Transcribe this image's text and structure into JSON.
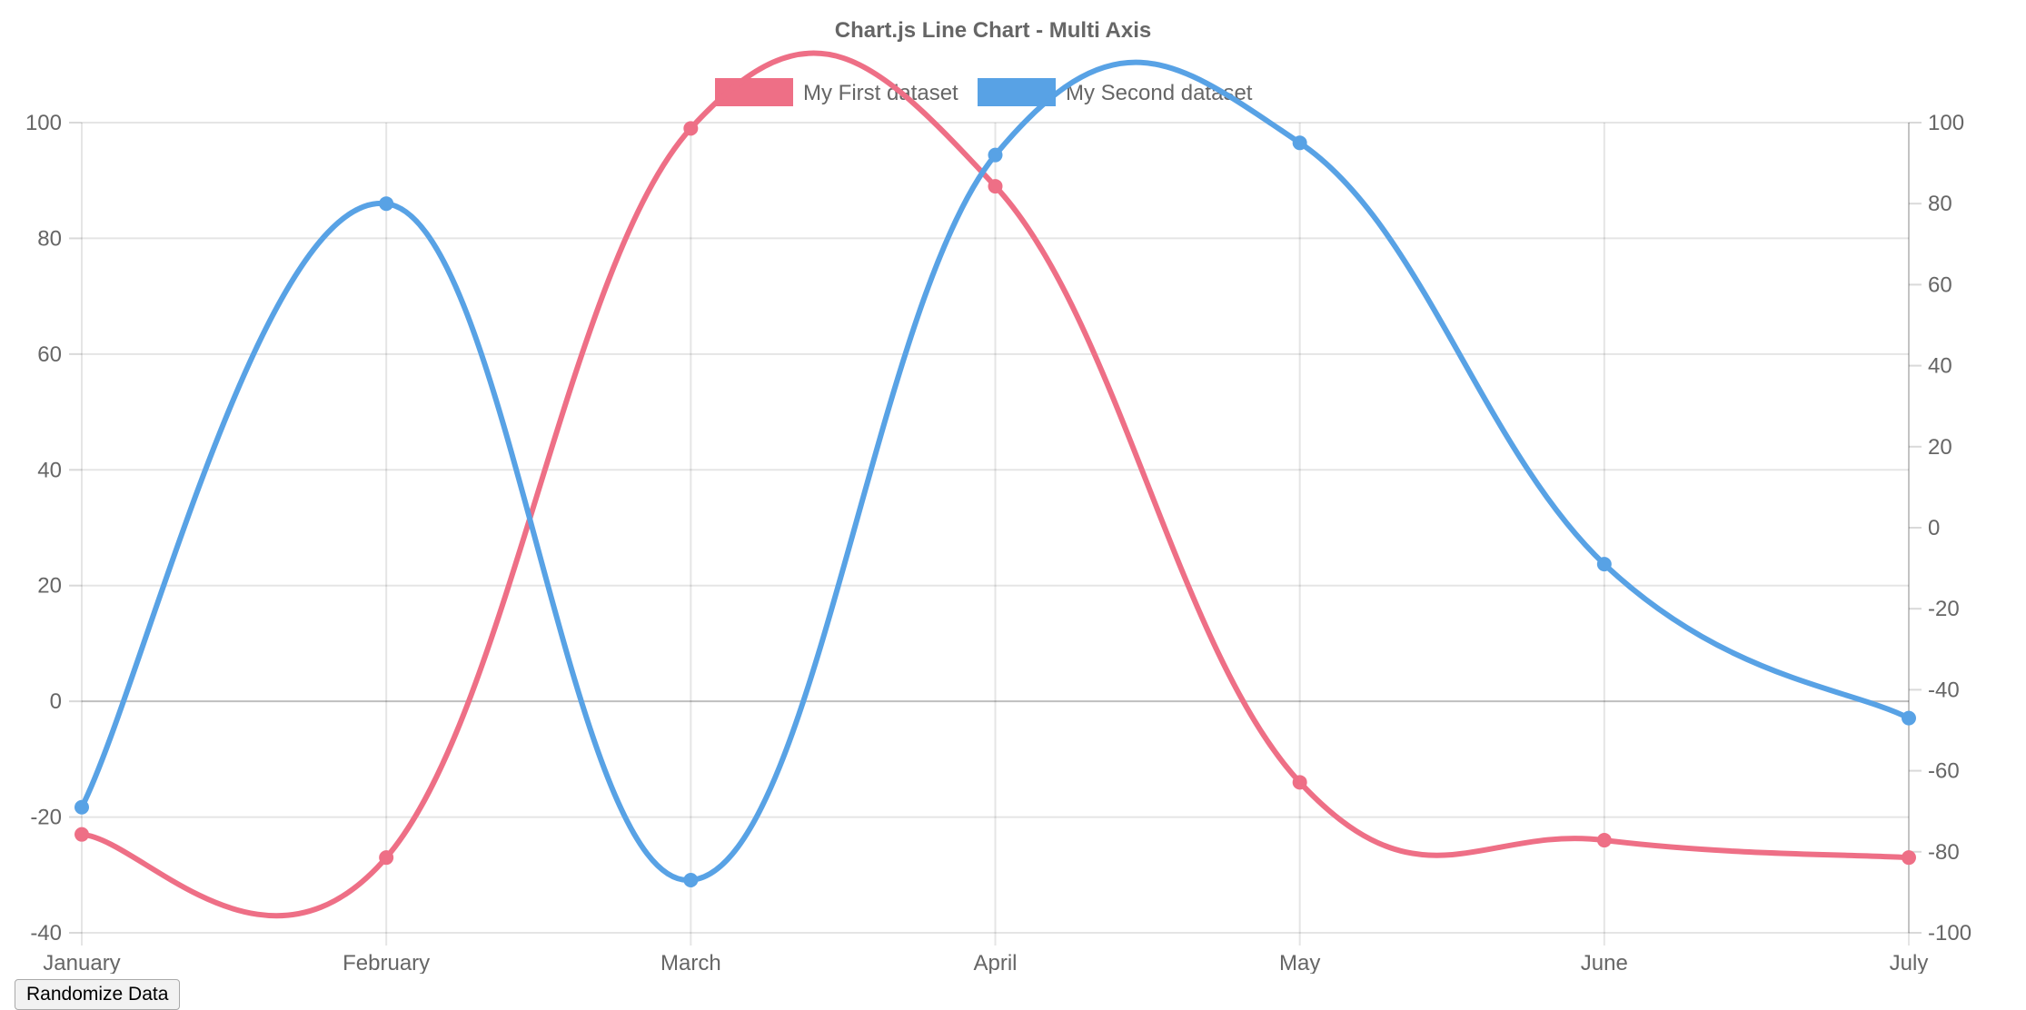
{
  "chart_data": {
    "type": "line",
    "title": "Chart.js Line Chart - Multi Axis",
    "categories": [
      "January",
      "February",
      "March",
      "April",
      "May",
      "June",
      "July"
    ],
    "series": [
      {
        "name": "My First dataset",
        "axis": "left",
        "color": "#ee6f86",
        "values": [
          -23,
          -27,
          99,
          89,
          -14,
          -24,
          -27
        ]
      },
      {
        "name": "My Second dataset",
        "axis": "right",
        "color": "#58a2e5",
        "values": [
          -69,
          80,
          -87,
          92,
          95,
          -9,
          -47
        ]
      }
    ],
    "y_left": {
      "min": -40,
      "max": 100,
      "ticks": [
        100,
        80,
        60,
        40,
        20,
        0,
        -20,
        -40
      ]
    },
    "y_right": {
      "min": -100,
      "max": 100,
      "ticks": [
        100,
        80,
        60,
        40,
        20,
        0,
        -20,
        -40,
        -60,
        -80,
        -100
      ]
    },
    "grid": true,
    "legend_position": "top"
  },
  "controls": {
    "randomize_label": "Randomize Data"
  }
}
